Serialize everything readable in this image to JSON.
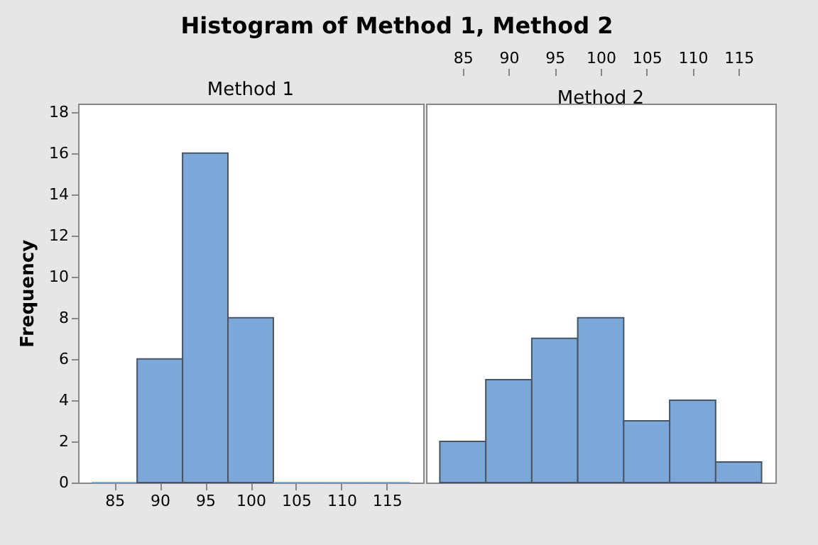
{
  "chart_data": [
    {
      "type": "histogram",
      "title": "Histogram of Method 1, Method 2",
      "subtitle": "Method 1",
      "ylabel": "Frequency",
      "bins": [
        82.5,
        87.5,
        92.5,
        97.5,
        102.5,
        107.5,
        112.5,
        117.5
      ],
      "values": [
        0,
        6,
        16,
        8,
        0,
        0,
        0
      ],
      "color": "#7ba7d9",
      "xlim": [
        81,
        119
      ],
      "xticks": [
        85,
        90,
        95,
        100,
        105,
        110,
        115
      ],
      "ylim": [
        0,
        18.4
      ],
      "yticks": [
        0,
        2,
        4,
        6,
        8,
        10,
        12,
        14,
        16,
        18
      ]
    },
    {
      "type": "histogram",
      "subtitle": "Method 2",
      "bins": [
        82.5,
        87.5,
        92.5,
        97.5,
        102.5,
        107.5,
        112.5,
        117.5
      ],
      "values": [
        2,
        5,
        7,
        8,
        3,
        4,
        1
      ],
      "color": "#7ba7d9",
      "xlim": [
        81,
        119
      ],
      "xticks": [
        85,
        90,
        95,
        100,
        105,
        110,
        115
      ],
      "ylim": [
        0,
        18.4
      ],
      "yticks": [
        0,
        2,
        4,
        6,
        8,
        10,
        12,
        14,
        16,
        18
      ],
      "tick_labels": "x"
    }
  ]
}
